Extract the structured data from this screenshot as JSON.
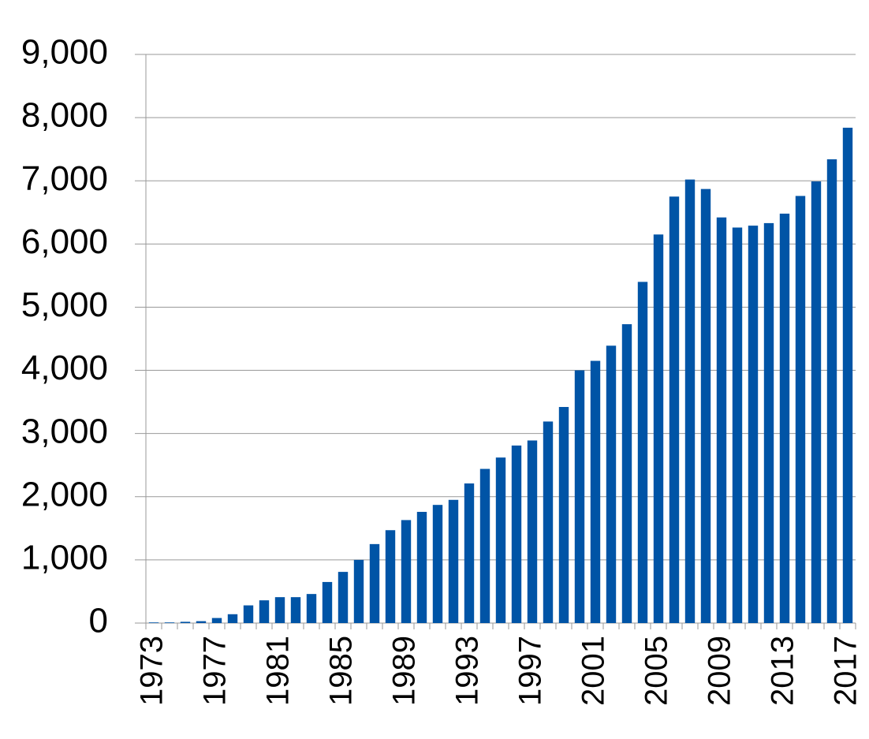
{
  "chart_data": {
    "type": "bar",
    "categories": [
      "1973",
      null,
      null,
      null,
      "1977",
      null,
      null,
      null,
      "1981",
      null,
      null,
      null,
      "1985",
      null,
      null,
      null,
      "1989",
      null,
      null,
      null,
      "1993",
      null,
      null,
      null,
      "1997",
      null,
      null,
      null,
      "2001",
      null,
      null,
      null,
      "2005",
      null,
      null,
      null,
      "2009",
      null,
      null,
      null,
      "2013",
      null,
      null,
      null,
      "2017"
    ],
    "values": [
      10,
      10,
      20,
      30,
      80,
      140,
      280,
      360,
      410,
      410,
      460,
      650,
      810,
      1000,
      1250,
      1470,
      1630,
      1760,
      1870,
      1950,
      2210,
      2440,
      2620,
      2810,
      2890,
      3190,
      3420,
      4000,
      4150,
      4390,
      4730,
      5400,
      6150,
      6750,
      7020,
      6870,
      6420,
      6260,
      6290,
      6330,
      6480,
      6760,
      6990,
      7340,
      7840
    ],
    "color": "#0054a6",
    "ylim": [
      0,
      9000
    ],
    "yticks": [
      0,
      {
        "value": 1000,
        "label": "1,000"
      },
      {
        "value": 2000,
        "label": "2,000"
      },
      {
        "value": 3000,
        "label": "3,000"
      },
      {
        "value": 4000,
        "label": "4,000"
      },
      {
        "value": 5000,
        "label": "5,000"
      },
      {
        "value": 6000,
        "label": "6,000"
      },
      {
        "value": 7000,
        "label": "7,000"
      },
      {
        "value": 8000,
        "label": "8,000"
      },
      {
        "value": 9000,
        "label": "9,000"
      }
    ],
    "grid": true
  }
}
